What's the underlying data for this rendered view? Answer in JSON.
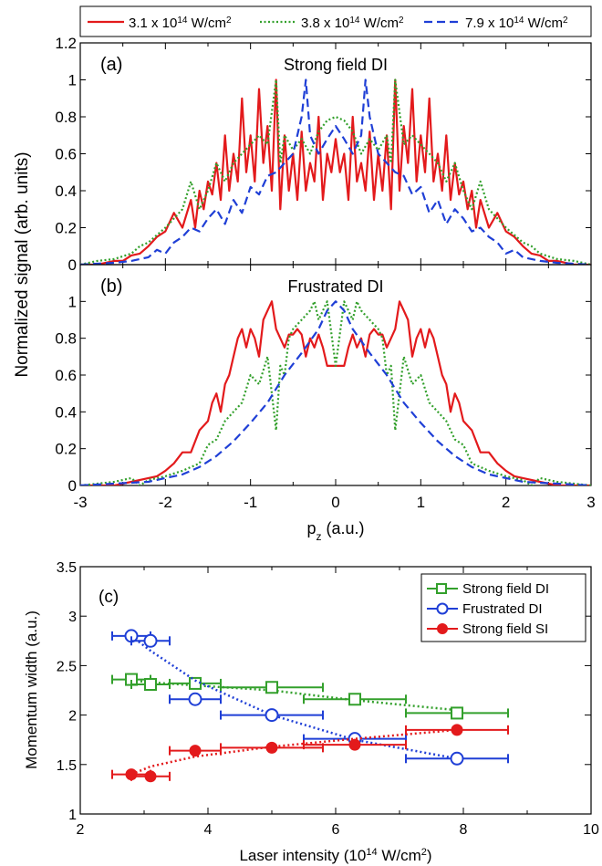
{
  "chart_data": [
    {
      "type": "line",
      "panel": "(a)",
      "title": "Strong field DI",
      "ylabel": "Normalized signal (arb. units)",
      "xlim": [
        -3,
        3
      ],
      "ylim": [
        0,
        1.2
      ],
      "yticks": [
        "0",
        "0.2",
        "0.4",
        "0.6",
        "0.8",
        "1",
        "1.2"
      ],
      "legend": [
        {
          "prefix": "3.1 x 10",
          "exp": "14",
          "unit": " W/cm",
          "unit_exp": "2",
          "color": "#e31a1c",
          "dash": "solid"
        },
        {
          "prefix": "3.8 x 10",
          "exp": "14",
          "unit": " W/cm",
          "unit_exp": "2",
          "color": "#33a02c",
          "dash": "dotted"
        },
        {
          "prefix": "7.9 x 10",
          "exp": "14",
          "unit": " W/cm",
          "unit_exp": "2",
          "color": "#1f3fd6",
          "dash": "dashed"
        }
      ],
      "series": [
        {
          "color": "#e31a1c",
          "dash": "solid",
          "x": [
            -3.0,
            -2.8,
            -2.6,
            -2.5,
            -2.4,
            -2.3,
            -2.2,
            -2.1,
            -2.0,
            -1.9,
            -1.8,
            -1.7,
            -1.65,
            -1.6,
            -1.55,
            -1.5,
            -1.45,
            -1.4,
            -1.35,
            -1.3,
            -1.25,
            -1.2,
            -1.15,
            -1.1,
            -1.05,
            -1.0,
            -0.95,
            -0.9,
            -0.85,
            -0.8,
            -0.75,
            -0.7,
            -0.65,
            -0.6,
            -0.55,
            -0.5,
            -0.45,
            -0.4,
            -0.35,
            -0.3,
            -0.25,
            -0.2,
            -0.15,
            -0.1,
            -0.05,
            0.0,
            0.05,
            0.1,
            0.15,
            0.2,
            0.25,
            0.3,
            0.35,
            0.4,
            0.45,
            0.5,
            0.55,
            0.6,
            0.65,
            0.7,
            0.75,
            0.8,
            0.85,
            0.9,
            0.95,
            1.0,
            1.05,
            1.1,
            1.15,
            1.2,
            1.25,
            1.3,
            1.35,
            1.4,
            1.45,
            1.5,
            1.55,
            1.6,
            1.65,
            1.7,
            1.8,
            1.9,
            2.0,
            2.1,
            2.2,
            2.3,
            2.4,
            2.5,
            2.6,
            2.8,
            3.0
          ],
          "y": [
            0.0,
            0.0,
            0.02,
            0.02,
            0.05,
            0.06,
            0.1,
            0.15,
            0.18,
            0.28,
            0.2,
            0.35,
            0.2,
            0.4,
            0.3,
            0.45,
            0.38,
            0.55,
            0.35,
            0.7,
            0.4,
            0.6,
            0.45,
            0.9,
            0.5,
            0.7,
            0.45,
            0.95,
            0.55,
            0.75,
            0.4,
            1.0,
            0.3,
            0.7,
            0.4,
            0.6,
            0.35,
            0.72,
            0.4,
            0.55,
            0.45,
            0.8,
            0.35,
            0.6,
            0.5,
            0.68,
            0.5,
            0.6,
            0.35,
            0.8,
            0.45,
            0.55,
            0.4,
            0.72,
            0.35,
            0.6,
            0.4,
            0.7,
            0.3,
            1.0,
            0.4,
            0.75,
            0.55,
            0.95,
            0.45,
            0.7,
            0.5,
            0.9,
            0.45,
            0.6,
            0.4,
            0.7,
            0.35,
            0.55,
            0.38,
            0.45,
            0.3,
            0.4,
            0.2,
            0.35,
            0.2,
            0.28,
            0.18,
            0.15,
            0.1,
            0.06,
            0.05,
            0.02,
            0.02,
            0.0,
            0.0
          ]
        },
        {
          "color": "#33a02c",
          "dash": "dotted",
          "x": [
            -3.0,
            -2.8,
            -2.6,
            -2.4,
            -2.3,
            -2.2,
            -2.1,
            -2.0,
            -1.9,
            -1.8,
            -1.7,
            -1.6,
            -1.5,
            -1.4,
            -1.3,
            -1.2,
            -1.1,
            -1.0,
            -0.9,
            -0.8,
            -0.7,
            -0.65,
            -0.6,
            -0.5,
            -0.4,
            -0.3,
            -0.2,
            -0.1,
            0.0,
            0.1,
            0.2,
            0.3,
            0.4,
            0.5,
            0.6,
            0.65,
            0.7,
            0.8,
            0.9,
            1.0,
            1.1,
            1.2,
            1.3,
            1.4,
            1.5,
            1.6,
            1.7,
            1.8,
            1.9,
            2.0,
            2.1,
            2.2,
            2.3,
            2.4,
            2.6,
            2.8,
            3.0
          ],
          "y": [
            0.0,
            0.02,
            0.03,
            0.06,
            0.1,
            0.12,
            0.16,
            0.2,
            0.25,
            0.3,
            0.45,
            0.3,
            0.4,
            0.55,
            0.45,
            0.55,
            0.6,
            0.65,
            0.7,
            0.65,
            1.0,
            0.55,
            0.7,
            0.62,
            0.68,
            0.6,
            0.72,
            0.78,
            0.8,
            0.78,
            0.72,
            0.6,
            0.68,
            0.62,
            0.7,
            0.55,
            1.0,
            0.65,
            0.7,
            0.65,
            0.6,
            0.55,
            0.45,
            0.55,
            0.4,
            0.3,
            0.45,
            0.3,
            0.25,
            0.2,
            0.16,
            0.12,
            0.1,
            0.06,
            0.03,
            0.02,
            0.0
          ]
        },
        {
          "color": "#1f3fd6",
          "dash": "dashed",
          "x": [
            -3.0,
            -2.6,
            -2.4,
            -2.2,
            -2.1,
            -2.0,
            -1.9,
            -1.8,
            -1.7,
            -1.6,
            -1.5,
            -1.4,
            -1.3,
            -1.2,
            -1.1,
            -1.0,
            -0.9,
            -0.8,
            -0.7,
            -0.6,
            -0.5,
            -0.4,
            -0.35,
            -0.3,
            -0.2,
            -0.1,
            0.0,
            0.1,
            0.2,
            0.3,
            0.35,
            0.4,
            0.5,
            0.6,
            0.7,
            0.8,
            0.9,
            1.0,
            1.1,
            1.2,
            1.3,
            1.4,
            1.5,
            1.6,
            1.7,
            1.8,
            1.9,
            2.0,
            2.1,
            2.2,
            2.4,
            2.6,
            3.0
          ],
          "y": [
            0.0,
            0.01,
            0.02,
            0.04,
            0.08,
            0.06,
            0.12,
            0.15,
            0.2,
            0.18,
            0.25,
            0.3,
            0.22,
            0.35,
            0.28,
            0.42,
            0.38,
            0.48,
            0.5,
            0.55,
            0.6,
            0.8,
            1.0,
            0.7,
            0.6,
            0.68,
            0.75,
            0.68,
            0.6,
            0.7,
            1.0,
            0.8,
            0.6,
            0.55,
            0.5,
            0.48,
            0.38,
            0.42,
            0.28,
            0.35,
            0.22,
            0.3,
            0.25,
            0.18,
            0.2,
            0.15,
            0.12,
            0.06,
            0.08,
            0.04,
            0.02,
            0.01,
            0.0
          ]
        }
      ]
    },
    {
      "type": "line",
      "panel": "(b)",
      "title": "Frustrated DI",
      "xlabel": "p",
      "xlabel_sub": "z",
      "xlabel_rest": " (a.u.)",
      "xlim": [
        -3,
        3
      ],
      "ylim": [
        0,
        1.2
      ],
      "xticks": [
        "-3",
        "-2",
        "-1",
        "0",
        "1",
        "2",
        "3"
      ],
      "yticks": [
        "0",
        "0.2",
        "0.4",
        "0.6",
        "0.8",
        "1"
      ],
      "series": [
        {
          "color": "#e31a1c",
          "dash": "solid",
          "x": [
            -3.0,
            -2.6,
            -2.4,
            -2.2,
            -2.1,
            -2.0,
            -1.9,
            -1.8,
            -1.7,
            -1.6,
            -1.5,
            -1.45,
            -1.4,
            -1.35,
            -1.3,
            -1.25,
            -1.2,
            -1.15,
            -1.1,
            -1.05,
            -1.0,
            -0.95,
            -0.9,
            -0.85,
            -0.8,
            -0.75,
            -0.7,
            -0.65,
            -0.6,
            -0.55,
            -0.5,
            -0.45,
            -0.4,
            -0.35,
            -0.3,
            -0.25,
            -0.2,
            -0.15,
            -0.1,
            -0.05,
            0.0,
            0.05,
            0.1,
            0.15,
            0.2,
            0.25,
            0.3,
            0.35,
            0.4,
            0.45,
            0.5,
            0.55,
            0.6,
            0.65,
            0.7,
            0.75,
            0.8,
            0.85,
            0.9,
            0.95,
            1.0,
            1.05,
            1.1,
            1.15,
            1.2,
            1.25,
            1.3,
            1.35,
            1.4,
            1.45,
            1.5,
            1.6,
            1.7,
            1.8,
            1.9,
            2.0,
            2.1,
            2.2,
            2.4,
            2.6,
            3.0
          ],
          "y": [
            0.0,
            0.0,
            0.02,
            0.04,
            0.05,
            0.08,
            0.12,
            0.18,
            0.18,
            0.3,
            0.35,
            0.45,
            0.5,
            0.4,
            0.55,
            0.6,
            0.7,
            0.8,
            0.85,
            0.75,
            0.85,
            0.8,
            0.7,
            0.9,
            0.95,
            1.0,
            0.85,
            0.8,
            0.75,
            0.82,
            0.82,
            0.85,
            0.82,
            0.7,
            0.8,
            0.75,
            0.82,
            0.75,
            0.65,
            0.65,
            0.65,
            0.65,
            0.65,
            0.75,
            0.82,
            0.75,
            0.8,
            0.7,
            0.82,
            0.85,
            0.82,
            0.82,
            0.75,
            0.8,
            0.85,
            1.0,
            0.95,
            0.9,
            0.7,
            0.8,
            0.85,
            0.75,
            0.85,
            0.8,
            0.7,
            0.6,
            0.55,
            0.4,
            0.5,
            0.45,
            0.35,
            0.3,
            0.18,
            0.18,
            0.12,
            0.08,
            0.05,
            0.04,
            0.02,
            0.0,
            0.0
          ]
        },
        {
          "color": "#33a02c",
          "dash": "dotted",
          "x": [
            -3.0,
            -2.6,
            -2.4,
            -2.3,
            -2.2,
            -2.0,
            -1.8,
            -1.6,
            -1.5,
            -1.4,
            -1.3,
            -1.2,
            -1.1,
            -1.0,
            -0.9,
            -0.8,
            -0.7,
            -0.65,
            -0.6,
            -0.55,
            -0.5,
            -0.4,
            -0.3,
            -0.25,
            -0.2,
            -0.15,
            -0.1,
            0.0,
            0.1,
            0.15,
            0.2,
            0.25,
            0.3,
            0.4,
            0.5,
            0.55,
            0.6,
            0.65,
            0.7,
            0.8,
            0.9,
            1.0,
            1.1,
            1.2,
            1.3,
            1.4,
            1.5,
            1.6,
            1.8,
            2.0,
            2.2,
            2.3,
            2.4,
            2.6,
            3.0
          ],
          "y": [
            0.0,
            0.02,
            0.04,
            0.0,
            0.03,
            0.05,
            0.08,
            0.12,
            0.22,
            0.25,
            0.35,
            0.4,
            0.45,
            0.6,
            0.55,
            0.7,
            0.3,
            0.65,
            0.6,
            0.8,
            0.85,
            0.9,
            0.95,
            1.0,
            0.9,
            0.95,
            1.0,
            0.65,
            1.0,
            0.95,
            0.9,
            1.0,
            0.95,
            0.9,
            0.85,
            0.8,
            0.6,
            0.65,
            0.3,
            0.7,
            0.55,
            0.6,
            0.45,
            0.4,
            0.35,
            0.25,
            0.22,
            0.12,
            0.08,
            0.05,
            0.03,
            0.0,
            0.04,
            0.02,
            0.0
          ]
        },
        {
          "color": "#1f3fd6",
          "dash": "dashed",
          "x": [
            -3.0,
            -2.6,
            -2.2,
            -2.0,
            -1.8,
            -1.6,
            -1.4,
            -1.2,
            -1.0,
            -0.8,
            -0.6,
            -0.4,
            -0.2,
            -0.1,
            0.0,
            0.1,
            0.2,
            0.4,
            0.6,
            0.8,
            1.0,
            1.2,
            1.4,
            1.6,
            1.8,
            2.0,
            2.2,
            2.6,
            3.0
          ],
          "y": [
            0.0,
            0.01,
            0.02,
            0.04,
            0.06,
            0.1,
            0.16,
            0.24,
            0.34,
            0.45,
            0.6,
            0.72,
            0.85,
            0.95,
            1.0,
            0.95,
            0.85,
            0.72,
            0.6,
            0.45,
            0.34,
            0.24,
            0.16,
            0.1,
            0.06,
            0.04,
            0.02,
            0.01,
            0.0
          ]
        }
      ]
    },
    {
      "type": "scatter",
      "panel": "(c)",
      "xlabel": "Laser intensity (10",
      "xlabel_exp": "14",
      "xlabel_rest": " W/cm",
      "xlabel_exp2": "2",
      "xlabel_end": ")",
      "ylabel": "Momentum width (a.u.)",
      "xlim": [
        2,
        10
      ],
      "ylim": [
        1,
        3.5
      ],
      "xticks": [
        "2",
        "4",
        "6",
        "8",
        "10"
      ],
      "yticks": [
        "1",
        "1.5",
        "2",
        "2.5",
        "3",
        "3.5"
      ],
      "legend_position": "top-right",
      "series": [
        {
          "name": "Strong field DI",
          "marker": "square-open",
          "color": "#33a02c",
          "x": [
            2.8,
            3.1,
            3.8,
            5.0,
            6.3,
            7.9
          ],
          "y": [
            2.36,
            2.31,
            2.32,
            2.28,
            2.16,
            2.02
          ],
          "xerr": [
            0.3,
            0.3,
            0.4,
            0.8,
            0.8,
            0.8
          ],
          "fit_y": [
            2.35,
            2.33,
            2.3,
            2.25,
            2.15,
            2.05
          ]
        },
        {
          "name": "Frustrated DI",
          "marker": "circle-open",
          "color": "#1f3fd6",
          "x": [
            2.8,
            3.1,
            3.8,
            5.0,
            6.3,
            7.9
          ],
          "y": [
            2.8,
            2.75,
            2.16,
            2.0,
            1.76,
            1.56
          ],
          "xerr": [
            0.3,
            0.3,
            0.4,
            0.8,
            0.8,
            0.8
          ],
          "fit_y": [
            2.8,
            2.65,
            2.35,
            2.0,
            1.75,
            1.56
          ]
        },
        {
          "name": "Strong field SI",
          "marker": "circle-filled",
          "color": "#e31a1c",
          "x": [
            2.8,
            3.1,
            3.8,
            5.0,
            6.3,
            7.9
          ],
          "y": [
            1.4,
            1.38,
            1.64,
            1.67,
            1.7,
            1.85
          ],
          "xerr": [
            0.3,
            0.3,
            0.4,
            0.8,
            0.8,
            0.8
          ],
          "fit_y": [
            1.4,
            1.48,
            1.58,
            1.68,
            1.76,
            1.85
          ]
        }
      ]
    }
  ]
}
